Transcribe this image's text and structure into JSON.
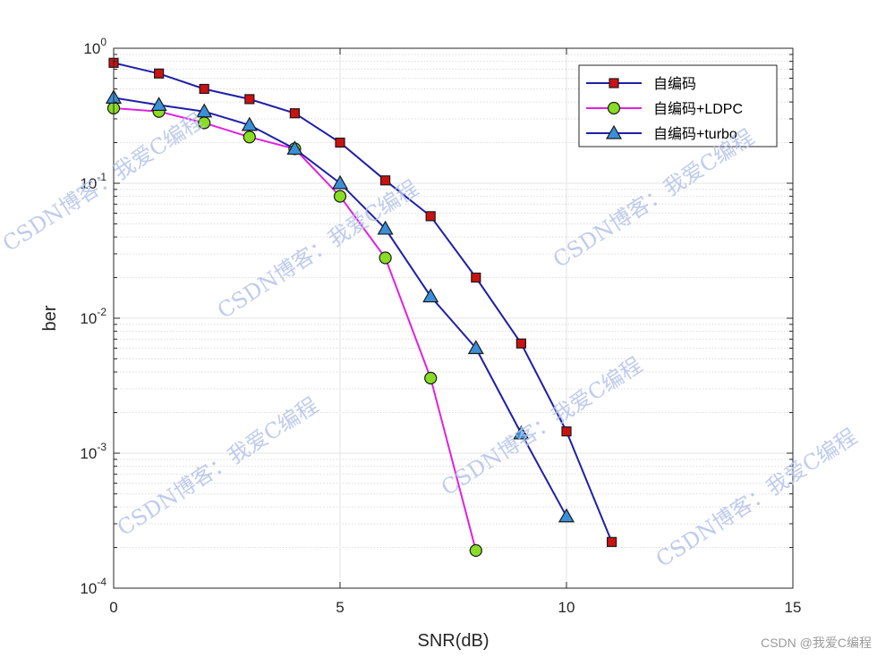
{
  "chart_data": {
    "type": "line",
    "xlabel": "SNR(dB)",
    "ylabel": "ber",
    "xlim": [
      0,
      15
    ],
    "ylim": [
      0.0001,
      1
    ],
    "yscale": "log",
    "xticks": [
      "0",
      "5",
      "10",
      "15"
    ],
    "yticks": [
      {
        "base": "10",
        "exp": "0"
      },
      {
        "base": "10",
        "exp": "-1"
      },
      {
        "base": "10",
        "exp": "-2"
      },
      {
        "base": "10",
        "exp": "-3"
      },
      {
        "base": "10",
        "exp": "-4"
      }
    ],
    "grid": true,
    "legend_position": "top-right",
    "series": [
      {
        "name": "自编码",
        "line_color": "#1f1fa8",
        "marker": "square",
        "marker_color": "#cc1111",
        "x": [
          0,
          1,
          2,
          3,
          4,
          5,
          6,
          7,
          8,
          9,
          10,
          11
        ],
        "values": [
          0.78,
          0.65,
          0.5,
          0.42,
          0.33,
          0.2,
          0.105,
          0.057,
          0.02,
          0.0065,
          0.00145,
          0.00022
        ]
      },
      {
        "name": "自编码+LDPC",
        "line_color": "#e020e0",
        "marker": "circle",
        "marker_color": "#88dd22",
        "x": [
          0,
          1,
          2,
          3,
          4,
          5,
          6,
          7,
          8
        ],
        "values": [
          0.36,
          0.34,
          0.28,
          0.22,
          0.18,
          0.08,
          0.028,
          0.0036,
          0.00019
        ]
      },
      {
        "name": "自编码+turbo",
        "line_color": "#1f1fa8",
        "marker": "triangle",
        "marker_color": "#3a8fd9",
        "x": [
          0,
          1,
          2,
          3,
          4,
          5,
          6,
          7,
          8,
          9,
          10
        ],
        "values": [
          0.43,
          0.38,
          0.34,
          0.27,
          0.18,
          0.1,
          0.046,
          0.0145,
          0.006,
          0.0014,
          0.00034
        ]
      }
    ]
  },
  "watermark": {
    "text_a": "CSDN博客：我爱C编程",
    "credit": "CSDN @我爱C编程"
  }
}
